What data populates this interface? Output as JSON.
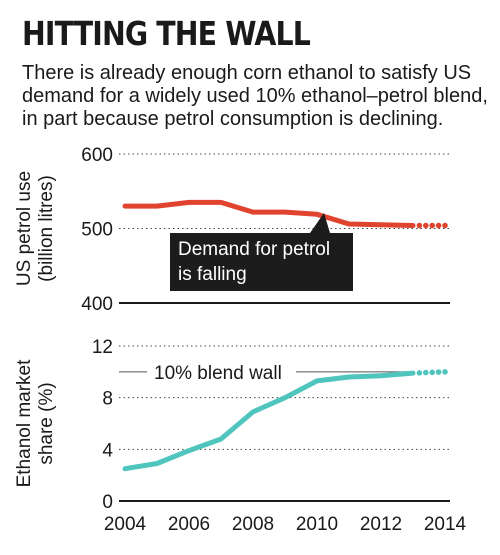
{
  "title": "HITTING THE WALL",
  "subtitle": "There is already enough corn ethanol to satisfy US demand for a widely used 10% ethanol–petrol blend, in part because petrol consumption is declining.",
  "colors": {
    "petrol": "#e0442f",
    "ethanol": "#4fc5be",
    "box": "#1c1c1c",
    "axis": "#1a1a1a"
  },
  "chart_data": [
    {
      "type": "line",
      "ylabel": [
        "US petrol use",
        "(billion litres)"
      ],
      "ylim": [
        400,
        600
      ],
      "yticks": [
        "400",
        "500",
        "600"
      ],
      "grid": true,
      "series": [
        {
          "x": [
            2004,
            2005,
            2006,
            2007,
            2008,
            2009,
            2010,
            2011,
            2012,
            2013
          ],
          "values": [
            530,
            530,
            535,
            535,
            522,
            522,
            519,
            506,
            505,
            504
          ]
        }
      ],
      "projection": {
        "x": [
          2013,
          2014
        ],
        "values": [
          504,
          504
        ]
      },
      "annotation": [
        "Demand for petrol",
        "is falling"
      ]
    },
    {
      "type": "line",
      "ylabel": [
        "Ethanol market",
        "share (%)"
      ],
      "ylim": [
        0,
        12
      ],
      "yticks": [
        "0",
        "4",
        "8",
        "12"
      ],
      "xticks": [
        "2004",
        "2006",
        "2008",
        "2010",
        "2012",
        "2014"
      ],
      "grid": true,
      "series": [
        {
          "x": [
            2004,
            2005,
            2006,
            2007,
            2008,
            2009,
            2010,
            2011,
            2012,
            2013
          ],
          "values": [
            2.5,
            2.9,
            3.9,
            4.8,
            6.9,
            8.0,
            9.3,
            9.6,
            9.7,
            9.9
          ]
        }
      ],
      "projection": {
        "x": [
          2013,
          2014
        ],
        "values": [
          9.9,
          10
        ]
      },
      "reference_line": {
        "value": 10,
        "label": "10% blend wall"
      }
    }
  ]
}
